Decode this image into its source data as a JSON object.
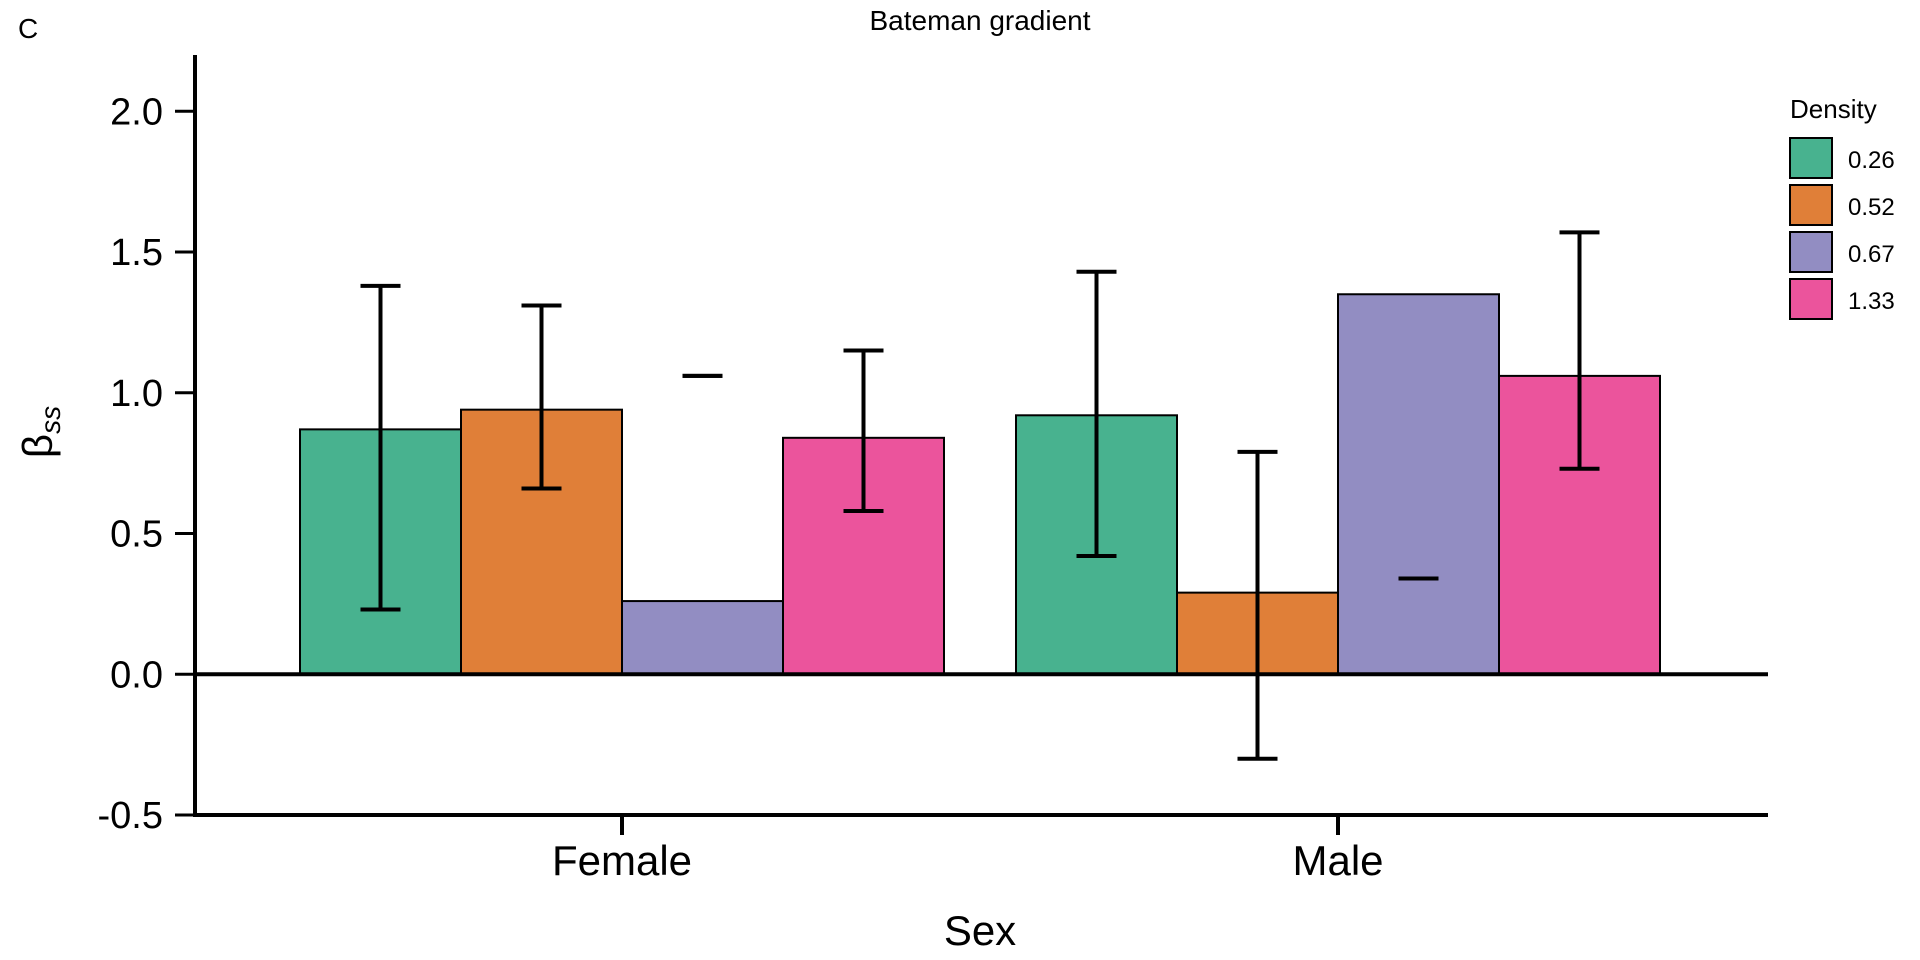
{
  "panel_label": "C",
  "chart_data": {
    "type": "bar",
    "title": "Bateman gradient",
    "xlabel": "Sex",
    "ylabel_main": "β",
    "ylabel_sub": "ss",
    "categories": [
      "Female",
      "Male"
    ],
    "ylim": [
      -0.5,
      2.2
    ],
    "yticks": [
      2.0,
      1.5,
      1.0,
      0.5,
      0.0,
      -0.5
    ],
    "ytick_labels": [
      "2.0",
      "1.5",
      "1.0",
      "0.5",
      "0.0",
      "-0.5"
    ],
    "grid": false,
    "legend_title": "Density",
    "legend_position": "right",
    "series": [
      {
        "name": "0.26",
        "color": "#48b28f",
        "values": [
          0.87,
          0.92
        ],
        "err_low": [
          0.23,
          0.42
        ],
        "err_high": [
          1.38,
          1.43
        ]
      },
      {
        "name": "0.52",
        "color": "#e07f38",
        "values": [
          0.94,
          0.29
        ],
        "err_low": [
          0.66,
          -0.3
        ],
        "err_high": [
          1.31,
          0.79
        ]
      },
      {
        "name": "0.67",
        "color": "#928dc2",
        "values": [
          0.26,
          1.35
        ],
        "err_low": [
          1.06,
          0.34
        ],
        "err_high": [
          1.06,
          0.34
        ]
      },
      {
        "name": "1.33",
        "color": "#eb549c",
        "values": [
          0.84,
          1.06
        ],
        "err_low": [
          0.58,
          0.73
        ],
        "err_high": [
          1.15,
          1.57
        ]
      }
    ]
  }
}
